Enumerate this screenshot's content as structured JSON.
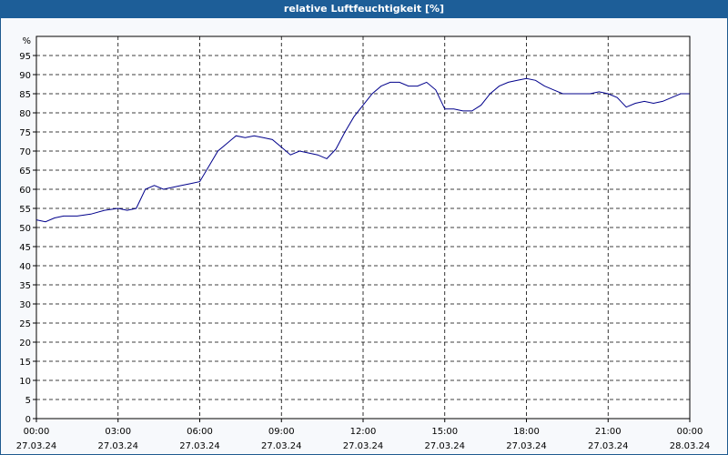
{
  "chart_data": {
    "type": "line",
    "title": "relative Luftfeuchtigkeit [%]",
    "ylabel": "%",
    "ylim": [
      0,
      100
    ],
    "yticks": [
      0,
      5,
      10,
      15,
      20,
      25,
      30,
      35,
      40,
      45,
      50,
      55,
      60,
      65,
      70,
      75,
      80,
      85,
      90,
      95
    ],
    "xlim": [
      "27.03.24 00:00",
      "28.03.24 00:00"
    ],
    "xticks": [
      {
        "time": "00:00",
        "date": "27.03.24"
      },
      {
        "time": "03:00",
        "date": "27.03.24"
      },
      {
        "time": "06:00",
        "date": "27.03.24"
      },
      {
        "time": "09:00",
        "date": "27.03.24"
      },
      {
        "time": "12:00",
        "date": "27.03.24"
      },
      {
        "time": "15:00",
        "date": "27.03.24"
      },
      {
        "time": "18:00",
        "date": "27.03.24"
      },
      {
        "time": "21:00",
        "date": "27.03.24"
      },
      {
        "time": "00:00",
        "date": "28.03.24"
      }
    ],
    "grid": true,
    "line_color": "#00008b",
    "series": [
      {
        "x": [
          "00:00",
          "00:20",
          "00:40",
          "01:00",
          "01:30",
          "02:00",
          "02:30",
          "03:00",
          "03:20",
          "03:40",
          "04:00",
          "04:20",
          "04:40",
          "05:00",
          "05:20",
          "05:40",
          "06:00",
          "06:20",
          "06:40",
          "07:00",
          "07:20",
          "07:40",
          "08:00",
          "08:20",
          "08:40",
          "09:00",
          "09:20",
          "09:40",
          "10:00",
          "10:20",
          "10:40",
          "11:00",
          "11:20",
          "11:40",
          "12:00",
          "12:20",
          "12:40",
          "13:00",
          "13:20",
          "13:40",
          "14:00",
          "14:20",
          "14:40",
          "15:00",
          "15:20",
          "15:40",
          "16:00",
          "16:20",
          "16:40",
          "17:00",
          "17:20",
          "17:40",
          "18:00",
          "18:20",
          "18:40",
          "19:00",
          "19:20",
          "19:40",
          "20:00",
          "20:20",
          "20:40",
          "21:00",
          "21:20",
          "21:40",
          "22:00",
          "22:20",
          "22:40",
          "23:00",
          "23:20",
          "23:40",
          "23:59"
        ],
        "y": [
          52,
          51.5,
          52.5,
          53,
          53,
          53.5,
          54.5,
          55,
          54.5,
          55,
          60,
          61,
          60,
          60.5,
          61,
          61.5,
          62,
          66,
          70,
          72,
          74,
          73.5,
          74,
          73.5,
          73,
          71,
          69,
          70,
          69.5,
          69,
          68,
          70.5,
          75,
          79,
          82,
          85,
          87,
          88,
          88,
          87,
          87,
          88,
          86,
          81,
          81,
          80.5,
          80.5,
          82,
          85,
          87,
          88,
          88.5,
          89,
          88.5,
          87,
          86,
          85,
          85,
          85,
          85,
          85.5,
          85,
          84,
          81.5,
          82.5,
          83,
          82.5,
          83,
          84,
          85,
          85
        ]
      }
    ]
  }
}
